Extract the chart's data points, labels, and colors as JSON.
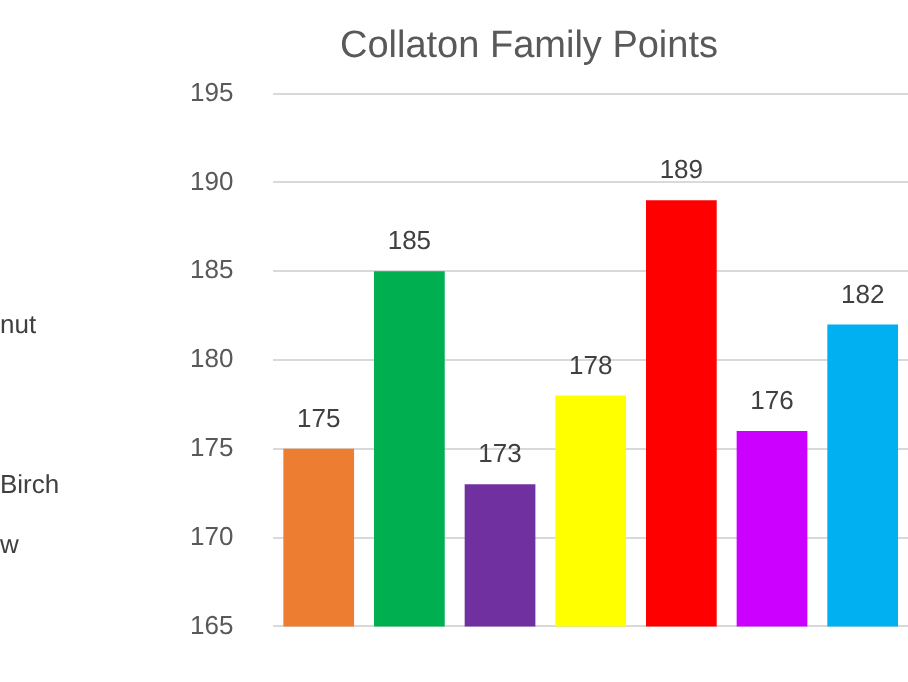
{
  "chart_data": {
    "type": "bar",
    "title": "Collaton Family Points",
    "categories": [
      null,
      null,
      null,
      null,
      null,
      null,
      null
    ],
    "values": [
      175,
      185,
      173,
      178,
      189,
      176,
      182
    ],
    "colors": [
      "#ed7d31",
      "#00b050",
      "#7030a0",
      "#ffff00",
      "#ff0000",
      "#cc00ff",
      "#00b0f0"
    ],
    "ylim": [
      165,
      195
    ],
    "yticks": [
      165,
      170,
      175,
      180,
      185,
      190,
      195
    ],
    "grid": "y",
    "data_labels": true,
    "annotations": [
      "nut",
      "Birch",
      "w"
    ]
  }
}
